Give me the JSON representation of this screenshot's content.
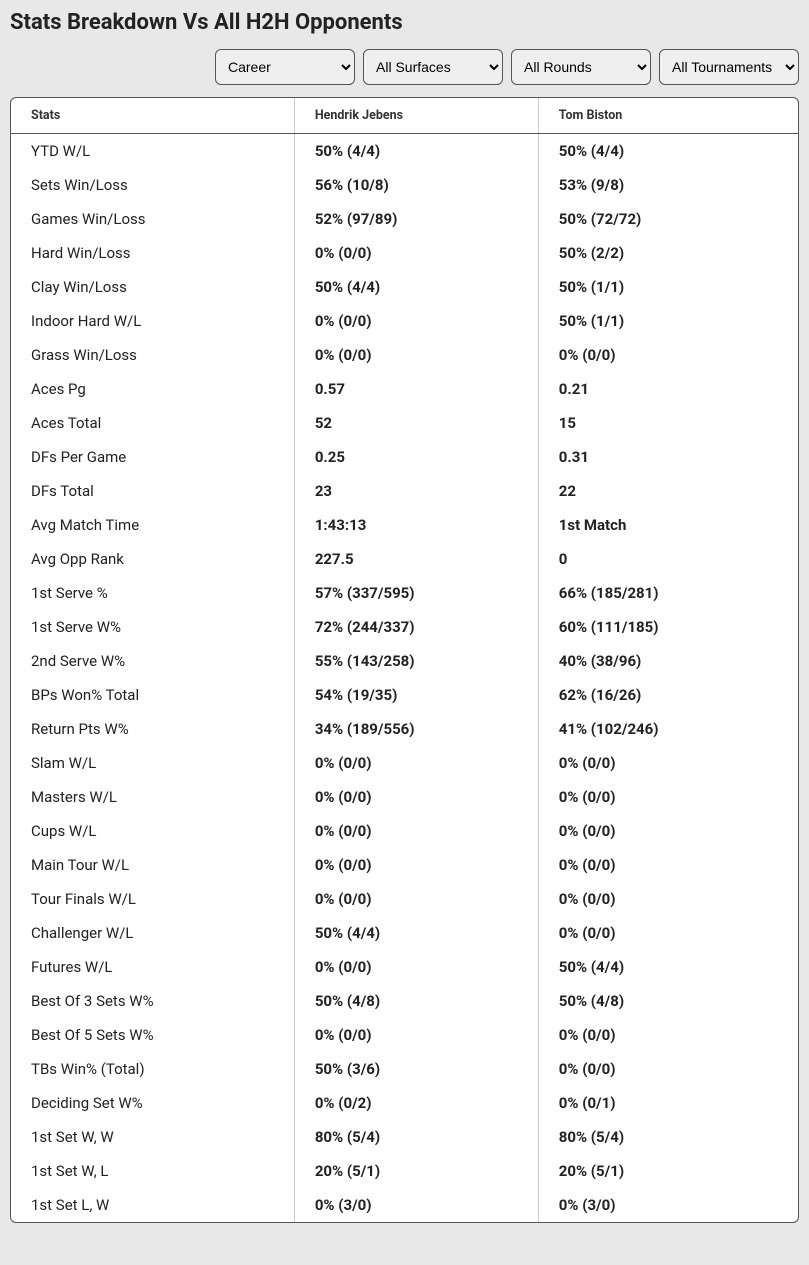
{
  "title": "Stats Breakdown Vs All H2H Opponents",
  "filters": {
    "period": "Career",
    "surface": "All Surfaces",
    "round": "All Rounds",
    "tournament": "All Tournaments"
  },
  "columns": {
    "stats": "Stats",
    "player1": "Hendrik Jebens",
    "player2": "Tom Biston"
  },
  "rows": [
    {
      "stat": "YTD W/L",
      "p1": "50% (4/4)",
      "p2": "50% (4/4)"
    },
    {
      "stat": "Sets Win/Loss",
      "p1": "56% (10/8)",
      "p2": "53% (9/8)"
    },
    {
      "stat": "Games Win/Loss",
      "p1": "52% (97/89)",
      "p2": "50% (72/72)"
    },
    {
      "stat": "Hard Win/Loss",
      "p1": "0% (0/0)",
      "p2": "50% (2/2)"
    },
    {
      "stat": "Clay Win/Loss",
      "p1": "50% (4/4)",
      "p2": "50% (1/1)"
    },
    {
      "stat": "Indoor Hard W/L",
      "p1": "0% (0/0)",
      "p2": "50% (1/1)"
    },
    {
      "stat": "Grass Win/Loss",
      "p1": "0% (0/0)",
      "p2": "0% (0/0)"
    },
    {
      "stat": "Aces Pg",
      "p1": "0.57",
      "p2": "0.21"
    },
    {
      "stat": "Aces Total",
      "p1": "52",
      "p2": "15"
    },
    {
      "stat": "DFs Per Game",
      "p1": "0.25",
      "p2": "0.31"
    },
    {
      "stat": "DFs Total",
      "p1": "23",
      "p2": "22"
    },
    {
      "stat": "Avg Match Time",
      "p1": "1:43:13",
      "p2": "1st Match"
    },
    {
      "stat": "Avg Opp Rank",
      "p1": "227.5",
      "p2": "0"
    },
    {
      "stat": "1st Serve %",
      "p1": "57% (337/595)",
      "p2": "66% (185/281)"
    },
    {
      "stat": "1st Serve W%",
      "p1": "72% (244/337)",
      "p2": "60% (111/185)"
    },
    {
      "stat": "2nd Serve W%",
      "p1": "55% (143/258)",
      "p2": "40% (38/96)"
    },
    {
      "stat": "BPs Won% Total",
      "p1": "54% (19/35)",
      "p2": "62% (16/26)"
    },
    {
      "stat": "Return Pts W%",
      "p1": "34% (189/556)",
      "p2": "41% (102/246)"
    },
    {
      "stat": "Slam W/L",
      "p1": "0% (0/0)",
      "p2": "0% (0/0)"
    },
    {
      "stat": "Masters W/L",
      "p1": "0% (0/0)",
      "p2": "0% (0/0)"
    },
    {
      "stat": "Cups W/L",
      "p1": "0% (0/0)",
      "p2": "0% (0/0)"
    },
    {
      "stat": "Main Tour W/L",
      "p1": "0% (0/0)",
      "p2": "0% (0/0)"
    },
    {
      "stat": "Tour Finals W/L",
      "p1": "0% (0/0)",
      "p2": "0% (0/0)"
    },
    {
      "stat": "Challenger W/L",
      "p1": "50% (4/4)",
      "p2": "0% (0/0)"
    },
    {
      "stat": "Futures W/L",
      "p1": "0% (0/0)",
      "p2": "50% (4/4)"
    },
    {
      "stat": "Best Of 3 Sets W%",
      "p1": "50% (4/8)",
      "p2": "50% (4/8)"
    },
    {
      "stat": "Best Of 5 Sets W%",
      "p1": "0% (0/0)",
      "p2": "0% (0/0)"
    },
    {
      "stat": "TBs Win% (Total)",
      "p1": "50% (3/6)",
      "p2": "0% (0/0)"
    },
    {
      "stat": "Deciding Set W%",
      "p1": "0% (0/2)",
      "p2": "0% (0/1)"
    },
    {
      "stat": "1st Set W, W",
      "p1": "80% (5/4)",
      "p2": "80% (5/4)"
    },
    {
      "stat": "1st Set W, L",
      "p1": "20% (5/1)",
      "p2": "20% (5/1)"
    },
    {
      "stat": "1st Set L, W",
      "p1": "0% (3/0)",
      "p2": "0% (3/0)"
    }
  ]
}
